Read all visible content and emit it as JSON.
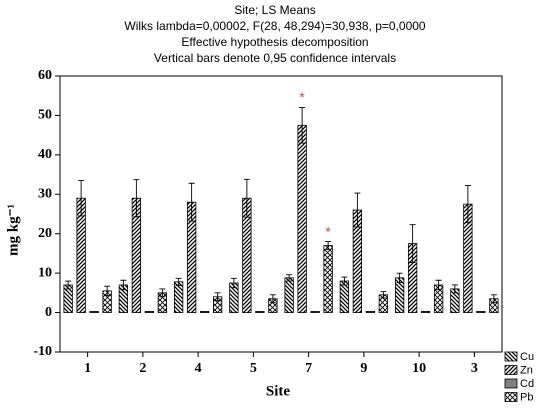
{
  "chart_data": {
    "type": "bar",
    "title": "Site; LS Means",
    "subtitles": [
      "Wilks lambda=0,00002, F(28, 48,294)=30,938, p=0,0000",
      "Effective hypothesis decomposition",
      "Vertical bars denote 0,95 confidence intervals"
    ],
    "x_label": "Site",
    "y_label": "mg kg⁻¹",
    "categories": [
      "1",
      "2",
      "4",
      "5",
      "7",
      "9",
      "10",
      "3"
    ],
    "series": [
      {
        "name": "Cu",
        "color": "#000000",
        "pattern": "diag-left",
        "values": [
          7,
          7,
          7.8,
          7.5,
          8.8,
          8,
          8.8,
          6
        ],
        "errors": [
          1,
          1.2,
          0.9,
          1.2,
          0.8,
          1,
          1.2,
          1
        ]
      },
      {
        "name": "Zn",
        "color": "#000000",
        "pattern": "diag-right",
        "values": [
          29,
          29,
          28,
          29,
          47.5,
          26,
          17.5,
          27.5
        ],
        "errors": [
          4.5,
          4.7,
          4.8,
          4.8,
          4.5,
          4.3,
          4.8,
          4.7
        ]
      },
      {
        "name": "Cd",
        "color": "#808080",
        "pattern": "solid",
        "values": [
          0.3,
          0.3,
          0.3,
          0.3,
          0.3,
          0.3,
          0.3,
          0.3
        ],
        "errors": [
          0,
          0,
          0,
          0,
          0,
          0,
          0,
          0
        ]
      },
      {
        "name": "Pb",
        "color": "#000000",
        "pattern": "cross",
        "values": [
          5.5,
          5,
          4,
          3.5,
          17,
          4.5,
          7,
          3.5
        ],
        "errors": [
          1.2,
          1,
          1,
          1,
          1,
          0.8,
          1.2,
          1
        ]
      }
    ],
    "annotations": [
      {
        "text": "*",
        "series": "Zn",
        "category": "7"
      },
      {
        "text": "*",
        "series": "Pb",
        "category": "7"
      }
    ],
    "annotation_color": "#c0504d",
    "ylim": [
      -10,
      60
    ],
    "yticks": [
      -10,
      0,
      10,
      20,
      30,
      40,
      50,
      60
    ],
    "grid": false,
    "legend": "bottom-right"
  }
}
